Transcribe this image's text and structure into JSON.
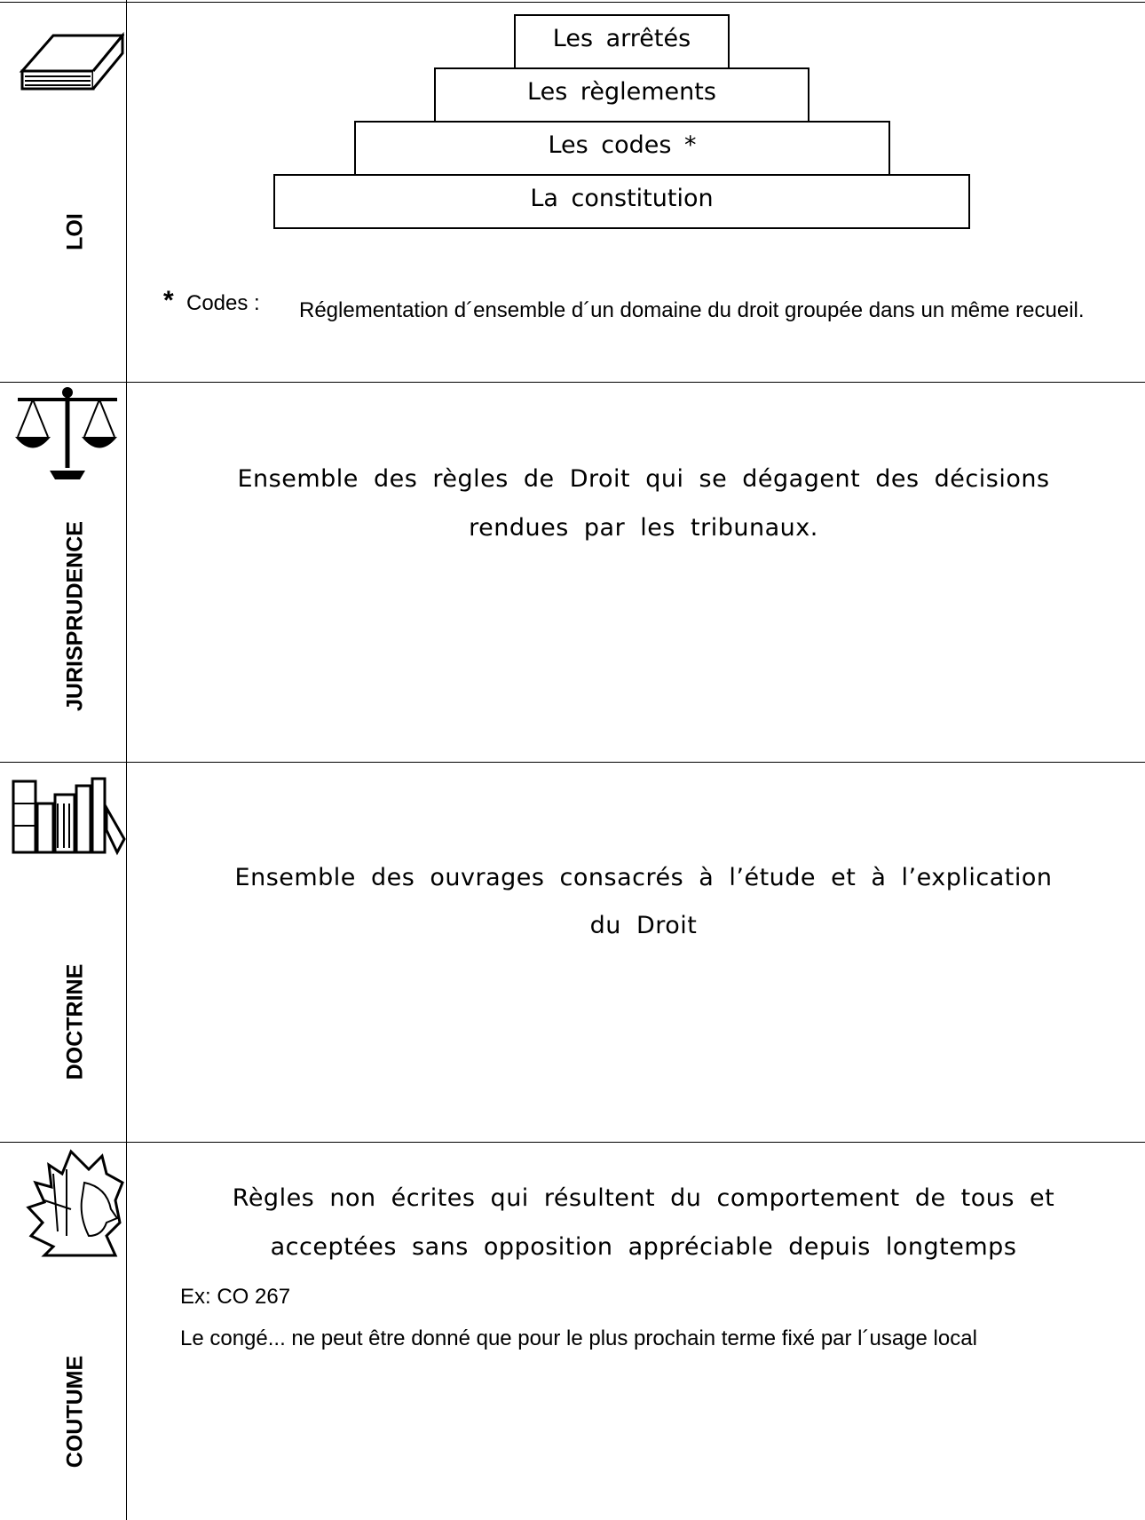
{
  "rows": [
    {
      "label": "LOI",
      "pyramid": [
        "Les arrêtés",
        "Les règlements",
        "Les codes *",
        "La constitution"
      ],
      "note": {
        "marker": "*",
        "term": "Codes :",
        "text": "Réglementation d´ensemble d´un domaine du droit groupée dans un même recueil."
      }
    },
    {
      "label": "JURISPRUDENCE",
      "lines": [
        "Ensemble des règles de Droit qui se dégagent des décisions",
        "rendues par les tribunaux."
      ]
    },
    {
      "label": "DOCTRINE",
      "lines": [
        "Ensemble des ouvrages consacrés à l’étude et à l’explication",
        "du Droit"
      ]
    },
    {
      "label": "COUTUME",
      "lines": [
        "Règles non écrites qui résultent du comportement de tous et",
        "acceptées sans opposition appréciable depuis longtemps"
      ],
      "example": [
        "Ex: CO 267",
        "Le congé... ne peut être donné que pour le plus prochain terme fixé par l´usage local"
      ]
    }
  ]
}
